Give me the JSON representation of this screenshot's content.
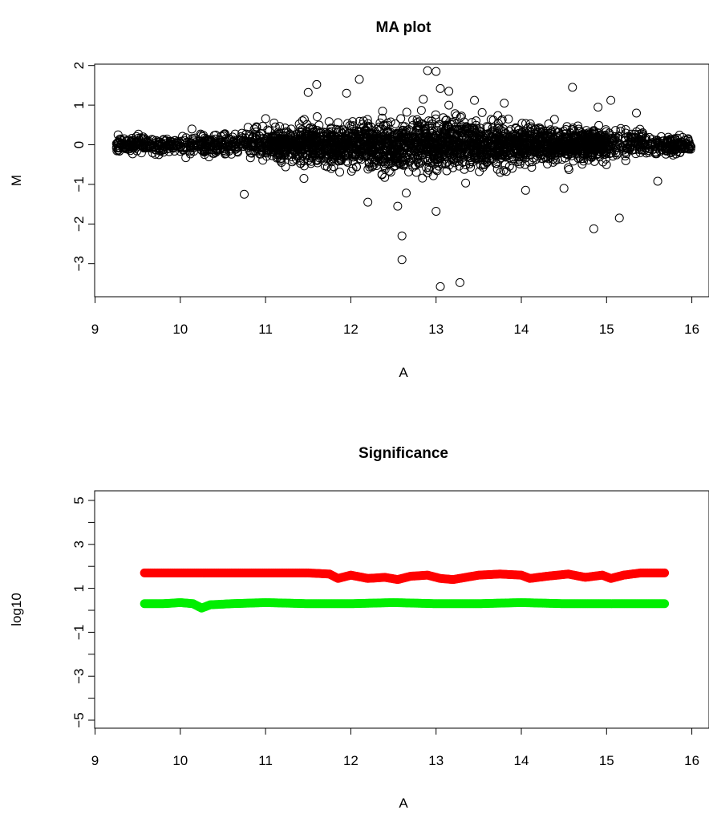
{
  "chart_data": [
    {
      "type": "scatter",
      "title": "MA plot",
      "xlabel": "A",
      "ylabel": "M",
      "xlim": [
        9,
        16
      ],
      "ylim": [
        -3.6,
        1.9
      ],
      "x_ticks": [
        9,
        10,
        11,
        12,
        13,
        14,
        15,
        16
      ],
      "x_tick_labels": [
        "9",
        "10",
        "11",
        "12",
        "13",
        "14",
        "15",
        "16"
      ],
      "y_ticks": [
        -3,
        -2,
        -1,
        0,
        1,
        2
      ],
      "y_tick_labels": [
        "−3",
        "−2",
        "−1",
        "0",
        "1",
        "2"
      ],
      "marker": "open-circle",
      "point_color": "#000000",
      "grid": false,
      "legend": "none",
      "outliers": {
        "x": [
          12.1,
          11.6,
          11.5,
          12.9,
          13.0,
          13.05,
          13.15,
          14.6,
          15.05,
          12.65,
          13.45,
          13.8,
          14.9,
          15.35,
          11.1,
          11.95,
          12.6,
          12.6,
          13.0,
          13.28,
          15.15,
          14.85,
          15.6,
          10.75,
          13.05,
          12.55,
          14.5,
          14.05,
          12.85,
          13.15,
          11.45,
          12.2
        ],
        "y": [
          1.65,
          1.52,
          1.32,
          1.87,
          1.85,
          1.42,
          1.35,
          1.45,
          1.12,
          -1.22,
          1.12,
          1.05,
          0.95,
          0.8,
          0.55,
          1.3,
          -2.3,
          -2.9,
          -1.68,
          -3.48,
          -1.85,
          -2.12,
          -0.92,
          -1.25,
          -3.58,
          -1.55,
          -1.1,
          -1.15,
          1.15,
          1.0,
          -0.85,
          -1.45
        ]
      },
      "bulk": {
        "x_range": [
          9.25,
          16.0
        ],
        "peak_spread_A": 13.0,
        "note": "dense band of several thousand points centered on M = 0"
      }
    },
    {
      "type": "scatter",
      "title": "Significance",
      "xlabel": "A",
      "ylabel": "log10",
      "xlim": [
        9,
        16
      ],
      "ylim": [
        -5.6,
        5.6
      ],
      "x_ticks": [
        9,
        10,
        11,
        12,
        13,
        14,
        15,
        16
      ],
      "x_tick_labels": [
        "9",
        "10",
        "11",
        "12",
        "13",
        "14",
        "15",
        "16"
      ],
      "y_ticks": [
        -5,
        -4,
        -3,
        -2,
        -1,
        0,
        1,
        2,
        3,
        4,
        5
      ],
      "y_tick_labels": [
        "−5",
        "",
        "−3",
        "",
        "−1",
        "",
        "1",
        "",
        "3",
        "",
        "5"
      ],
      "y_axis_reversed_top": true,
      "marker": "filled-circle",
      "grid": false,
      "legend": "none",
      "series": [
        {
          "color": "#ff0000",
          "x": [
            9.58,
            10.0,
            10.5,
            11.0,
            11.5,
            11.75,
            11.85,
            12.0,
            12.2,
            12.4,
            12.55,
            12.7,
            12.9,
            13.05,
            13.2,
            13.35,
            13.5,
            13.75,
            14.0,
            14.1,
            14.3,
            14.55,
            14.75,
            14.95,
            15.05,
            15.2,
            15.4,
            15.68
          ],
          "y": [
            1.7,
            1.7,
            1.7,
            1.7,
            1.7,
            1.65,
            1.45,
            1.6,
            1.45,
            1.5,
            1.4,
            1.55,
            1.6,
            1.45,
            1.4,
            1.5,
            1.6,
            1.65,
            1.6,
            1.45,
            1.55,
            1.65,
            1.5,
            1.6,
            1.45,
            1.6,
            1.7,
            1.7
          ]
        },
        {
          "color": "#00ee00",
          "x": [
            9.58,
            9.8,
            10.0,
            10.15,
            10.25,
            10.35,
            10.6,
            11.0,
            11.5,
            12.0,
            12.5,
            13.0,
            13.5,
            14.0,
            14.5,
            15.0,
            15.4,
            15.68
          ],
          "y": [
            0.3,
            0.3,
            0.35,
            0.3,
            0.1,
            0.25,
            0.3,
            0.35,
            0.3,
            0.3,
            0.35,
            0.3,
            0.3,
            0.35,
            0.3,
            0.3,
            0.3,
            0.3
          ]
        }
      ]
    }
  ]
}
